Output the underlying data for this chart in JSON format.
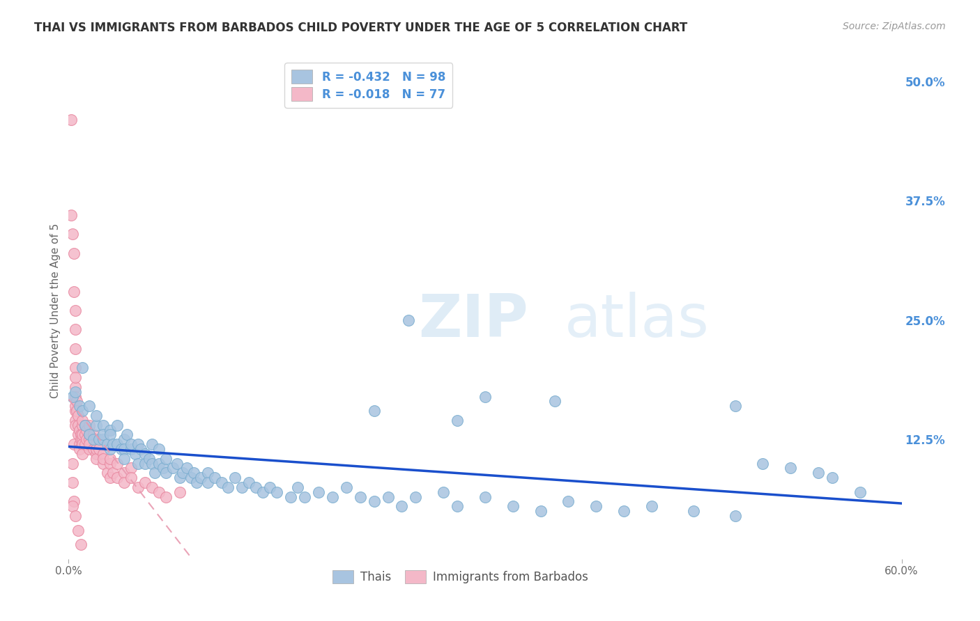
{
  "title": "THAI VS IMMIGRANTS FROM BARBADOS CHILD POVERTY UNDER THE AGE OF 5 CORRELATION CHART",
  "source": "Source: ZipAtlas.com",
  "ylabel": "Child Poverty Under the Age of 5",
  "xlim": [
    0.0,
    0.6
  ],
  "ylim": [
    0.0,
    0.52
  ],
  "ytick_labels_right": [
    "50.0%",
    "37.5%",
    "25.0%",
    "12.5%"
  ],
  "ytick_positions_right": [
    0.5,
    0.375,
    0.25,
    0.125
  ],
  "grid_color": "#cccccc",
  "thai_color": "#a8c4e0",
  "thai_edge_color": "#7aadcf",
  "barbados_color": "#f4b8c8",
  "barbados_edge_color": "#e8879f",
  "thai_line_color": "#1a4fcc",
  "barbados_line_color": "#e89ab0",
  "title_color": "#333333",
  "right_label_color": "#4a90d9",
  "R_thai": -0.432,
  "N_thai": 98,
  "R_barbados": -0.018,
  "N_barbados": 77,
  "thai_x": [
    0.003,
    0.005,
    0.008,
    0.01,
    0.01,
    0.012,
    0.015,
    0.015,
    0.018,
    0.02,
    0.02,
    0.022,
    0.025,
    0.025,
    0.025,
    0.028,
    0.03,
    0.03,
    0.03,
    0.032,
    0.035,
    0.035,
    0.038,
    0.04,
    0.04,
    0.04,
    0.042,
    0.045,
    0.045,
    0.048,
    0.05,
    0.05,
    0.052,
    0.055,
    0.055,
    0.058,
    0.06,
    0.06,
    0.062,
    0.065,
    0.065,
    0.068,
    0.07,
    0.07,
    0.075,
    0.078,
    0.08,
    0.082,
    0.085,
    0.088,
    0.09,
    0.092,
    0.095,
    0.1,
    0.1,
    0.105,
    0.11,
    0.115,
    0.12,
    0.125,
    0.13,
    0.135,
    0.14,
    0.145,
    0.15,
    0.16,
    0.165,
    0.17,
    0.18,
    0.19,
    0.2,
    0.21,
    0.22,
    0.23,
    0.24,
    0.25,
    0.27,
    0.28,
    0.3,
    0.32,
    0.34,
    0.36,
    0.38,
    0.4,
    0.42,
    0.45,
    0.48,
    0.5,
    0.52,
    0.54,
    0.55,
    0.57,
    0.3,
    0.35,
    0.48,
    0.22,
    0.28,
    0.245
  ],
  "thai_y": [
    0.17,
    0.175,
    0.16,
    0.155,
    0.2,
    0.14,
    0.13,
    0.16,
    0.125,
    0.14,
    0.15,
    0.125,
    0.14,
    0.125,
    0.13,
    0.12,
    0.115,
    0.135,
    0.13,
    0.12,
    0.14,
    0.12,
    0.115,
    0.125,
    0.115,
    0.105,
    0.13,
    0.115,
    0.12,
    0.11,
    0.12,
    0.1,
    0.115,
    0.11,
    0.1,
    0.105,
    0.1,
    0.12,
    0.09,
    0.1,
    0.115,
    0.095,
    0.105,
    0.09,
    0.095,
    0.1,
    0.085,
    0.09,
    0.095,
    0.085,
    0.09,
    0.08,
    0.085,
    0.09,
    0.08,
    0.085,
    0.08,
    0.075,
    0.085,
    0.075,
    0.08,
    0.075,
    0.07,
    0.075,
    0.07,
    0.065,
    0.075,
    0.065,
    0.07,
    0.065,
    0.075,
    0.065,
    0.06,
    0.065,
    0.055,
    0.065,
    0.07,
    0.055,
    0.065,
    0.055,
    0.05,
    0.06,
    0.055,
    0.05,
    0.055,
    0.05,
    0.045,
    0.1,
    0.095,
    0.09,
    0.085,
    0.07,
    0.17,
    0.165,
    0.16,
    0.155,
    0.145,
    0.25
  ],
  "barbados_x": [
    0.002,
    0.002,
    0.003,
    0.003,
    0.003,
    0.004,
    0.004,
    0.004,
    0.004,
    0.005,
    0.005,
    0.005,
    0.005,
    0.005,
    0.005,
    0.005,
    0.005,
    0.005,
    0.005,
    0.005,
    0.006,
    0.006,
    0.007,
    0.007,
    0.007,
    0.008,
    0.008,
    0.008,
    0.009,
    0.009,
    0.01,
    0.01,
    0.01,
    0.01,
    0.01,
    0.01,
    0.012,
    0.012,
    0.012,
    0.013,
    0.013,
    0.015,
    0.015,
    0.015,
    0.015,
    0.015,
    0.018,
    0.018,
    0.02,
    0.02,
    0.02,
    0.02,
    0.022,
    0.025,
    0.025,
    0.025,
    0.028,
    0.03,
    0.03,
    0.03,
    0.032,
    0.035,
    0.035,
    0.04,
    0.04,
    0.045,
    0.045,
    0.05,
    0.055,
    0.06,
    0.065,
    0.07,
    0.08,
    0.003,
    0.005,
    0.007,
    0.009
  ],
  "barbados_y": [
    0.46,
    0.36,
    0.34,
    0.1,
    0.08,
    0.32,
    0.28,
    0.12,
    0.06,
    0.26,
    0.24,
    0.22,
    0.2,
    0.18,
    0.17,
    0.155,
    0.145,
    0.14,
    0.19,
    0.16,
    0.165,
    0.155,
    0.15,
    0.13,
    0.14,
    0.12,
    0.135,
    0.115,
    0.13,
    0.125,
    0.14,
    0.125,
    0.12,
    0.13,
    0.11,
    0.145,
    0.14,
    0.13,
    0.12,
    0.125,
    0.135,
    0.125,
    0.115,
    0.13,
    0.14,
    0.12,
    0.115,
    0.13,
    0.11,
    0.12,
    0.115,
    0.105,
    0.115,
    0.11,
    0.1,
    0.105,
    0.09,
    0.1,
    0.085,
    0.105,
    0.09,
    0.1,
    0.085,
    0.09,
    0.08,
    0.095,
    0.085,
    0.075,
    0.08,
    0.075,
    0.07,
    0.065,
    0.07,
    0.055,
    0.045,
    0.03,
    0.015
  ]
}
